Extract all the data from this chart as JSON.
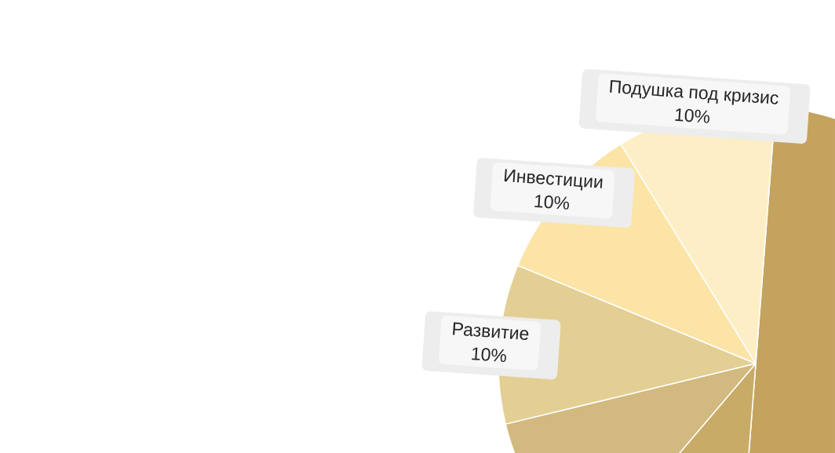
{
  "chart_data": {
    "type": "pie",
    "categories": [
      null,
      null,
      null,
      "Развитие",
      "Инвестиции",
      "Подушка под кризис"
    ],
    "values": [
      50,
      10,
      10,
      10,
      10,
      10
    ],
    "colors": [
      "#c4a35e",
      "#c9ab68",
      "#d2b97f",
      "#e3cf94",
      "#fce4a6",
      "#fdeec6"
    ],
    "value_labels": [
      null,
      null,
      null,
      "10%",
      "10%",
      "10%"
    ]
  }
}
